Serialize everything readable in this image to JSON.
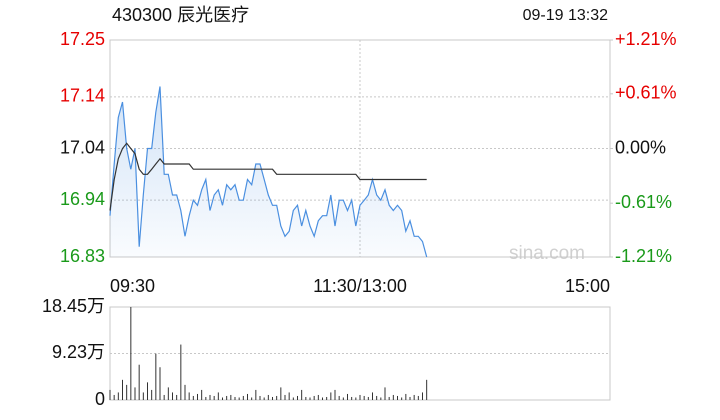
{
  "chart_data": [
    {
      "type": "line",
      "title": "430300 辰光医疗",
      "subtitle": "09-19 13:32",
      "watermark": "sina.com",
      "x": [
        0,
        2,
        4,
        6,
        8,
        10,
        12,
        14,
        16,
        18,
        20,
        22,
        24,
        26,
        28,
        30,
        32,
        34,
        36,
        38,
        40,
        42,
        44,
        46,
        48,
        50,
        52,
        54,
        56,
        58,
        60,
        62,
        64,
        66,
        68,
        70,
        72,
        74,
        76,
        78,
        80,
        82,
        84,
        86,
        88,
        90,
        92,
        94,
        96,
        98,
        100,
        102,
        104,
        106,
        108,
        110,
        112,
        114,
        116,
        118,
        120,
        122,
        124,
        126,
        128,
        130,
        132,
        134,
        136,
        138,
        140,
        142,
        144,
        146,
        148,
        150,
        152
      ],
      "series": [
        {
          "color": "#4a8fe0",
          "fill": true,
          "values": [
            16.91,
            17.01,
            17.1,
            17.13,
            17.04,
            17.0,
            17.04,
            16.85,
            16.95,
            17.04,
            17.04,
            17.11,
            17.16,
            16.99,
            16.99,
            16.95,
            16.95,
            16.92,
            16.87,
            16.91,
            16.94,
            16.93,
            16.96,
            16.98,
            16.92,
            16.95,
            16.96,
            16.93,
            16.97,
            16.96,
            16.97,
            16.94,
            16.94,
            16.98,
            16.97,
            17.01,
            17.01,
            16.98,
            16.95,
            16.93,
            16.93,
            16.89,
            16.87,
            16.88,
            16.92,
            16.93,
            16.89,
            16.92,
            16.89,
            16.87,
            16.9,
            16.91,
            16.91,
            16.95,
            16.89,
            16.94,
            16.94,
            16.92,
            16.94,
            16.89,
            16.93,
            16.94,
            16.95,
            16.98,
            16.95,
            16.94,
            16.96,
            16.93,
            16.92,
            16.93,
            16.92,
            16.88,
            16.9,
            16.87,
            16.87,
            16.86,
            16.83
          ]
        },
        {
          "color": "#333333",
          "fill": false,
          "values": [
            16.92,
            16.98,
            17.02,
            17.04,
            17.05,
            17.04,
            17.03,
            17.0,
            16.99,
            16.99,
            17.0,
            17.01,
            17.02,
            17.01,
            17.01,
            17.01,
            17.01,
            17.01,
            17.01,
            17.01,
            17.0,
            17.0,
            17.0,
            17.0,
            17.0,
            17.0,
            17.0,
            17.0,
            17.0,
            17.0,
            17.0,
            17.0,
            17.0,
            17.0,
            17.0,
            17.0,
            17.0,
            17.0,
            17.0,
            17.0,
            16.99,
            16.99,
            16.99,
            16.99,
            16.99,
            16.99,
            16.99,
            16.99,
            16.99,
            16.99,
            16.99,
            16.99,
            16.99,
            16.99,
            16.99,
            16.99,
            16.99,
            16.99,
            16.99,
            16.99,
            16.98,
            16.98,
            16.98,
            16.98,
            16.98,
            16.98,
            16.98,
            16.98,
            16.98,
            16.98,
            16.98,
            16.98,
            16.98,
            16.98,
            16.98,
            16.98,
            16.98
          ]
        }
      ],
      "xlim": [
        0,
        240
      ],
      "xticks": [
        {
          "value": 0,
          "label": "09:30"
        },
        {
          "value": 120,
          "label": "11:30/13:00"
        },
        {
          "value": 240,
          "label": "15:00"
        }
      ],
      "ylim": [
        16.83,
        17.25
      ],
      "yticks": [
        17.25,
        17.14,
        17.04,
        16.94,
        16.83
      ],
      "y2lim": [
        -1.21,
        1.21
      ],
      "y2ticks": [
        {
          "value": 1.21,
          "label": "+1.21%"
        },
        {
          "value": 0.61,
          "label": "+0.61%"
        },
        {
          "value": 0,
          "label": "0.00%"
        },
        {
          "value": -0.61,
          "label": "-0.61%"
        },
        {
          "value": -1.21,
          "label": "-1.21%"
        }
      ],
      "up_color": "#e60000",
      "down_color": "#1a9a1a",
      "grid": true
    },
    {
      "type": "bar",
      "color": "#333333",
      "x": [
        0,
        2,
        4,
        6,
        8,
        10,
        12,
        14,
        16,
        18,
        20,
        22,
        24,
        26,
        28,
        30,
        32,
        34,
        36,
        38,
        40,
        42,
        44,
        46,
        48,
        50,
        52,
        54,
        56,
        58,
        60,
        62,
        64,
        66,
        68,
        70,
        72,
        74,
        76,
        78,
        80,
        82,
        84,
        86,
        88,
        90,
        92,
        94,
        96,
        98,
        100,
        102,
        104,
        106,
        108,
        110,
        112,
        114,
        116,
        118,
        120,
        122,
        124,
        126,
        128,
        130,
        132,
        134,
        136,
        138,
        140,
        142,
        144,
        146,
        148,
        150,
        152
      ],
      "values": [
        2.0,
        1.0,
        1.5,
        4.0,
        3.0,
        18.45,
        2.5,
        7.0,
        1.5,
        3.5,
        2.0,
        9.2,
        6.5,
        1.0,
        2.5,
        1.5,
        1.0,
        11.0,
        3.0,
        1.5,
        0.8,
        1.2,
        2.0,
        0.6,
        1.0,
        0.8,
        1.5,
        0.5,
        0.8,
        1.0,
        0.6,
        0.5,
        0.8,
        1.2,
        0.5,
        2.0,
        0.8,
        0.5,
        1.0,
        0.6,
        0.8,
        2.5,
        1.0,
        1.5,
        0.5,
        0.8,
        2.0,
        0.6,
        0.5,
        0.8,
        1.0,
        0.5,
        0.6,
        1.5,
        2.0,
        0.8,
        0.5,
        1.2,
        0.6,
        0.5,
        1.0,
        0.8,
        0.6,
        1.5,
        0.8,
        0.5,
        2.5,
        0.6,
        1.0,
        0.8,
        0.5,
        1.2,
        0.6,
        1.0,
        0.8,
        1.5,
        4.0
      ],
      "xlim": [
        0,
        240
      ],
      "ylim": [
        0,
        18.45
      ],
      "yticks": [
        {
          "value": 18.45,
          "label": "18.45万"
        },
        {
          "value": 9.23,
          "label": "9.23万"
        },
        0
      ],
      "grid": true
    }
  ]
}
